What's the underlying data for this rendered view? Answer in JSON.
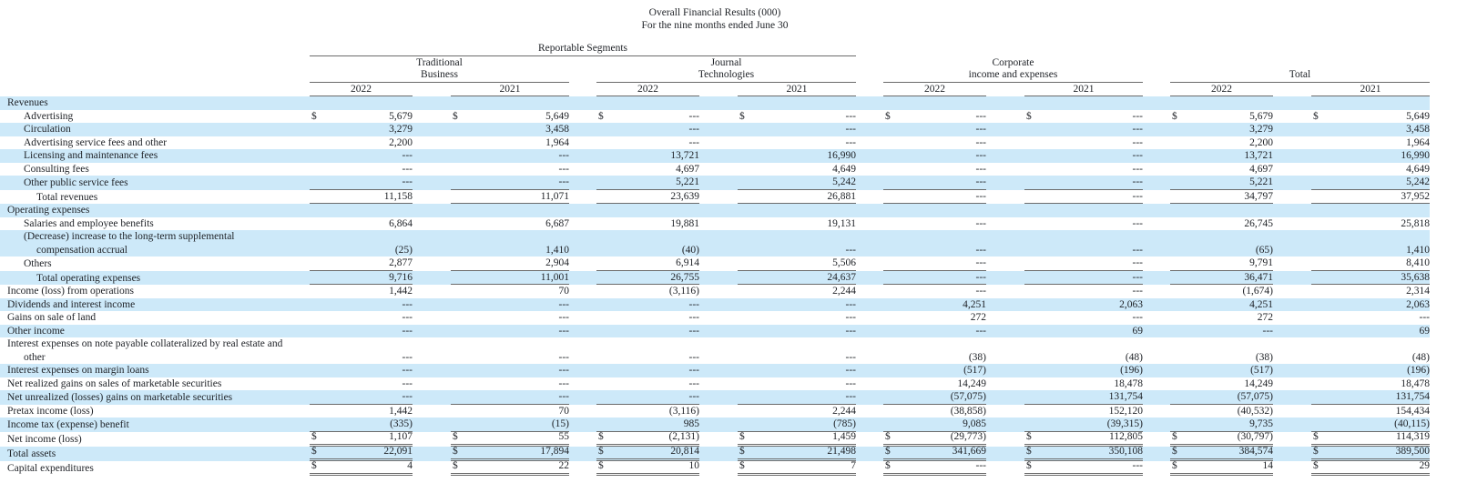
{
  "title": {
    "line1": "Overall Financial Results (000)",
    "line2": "For the nine months ended June 30"
  },
  "header": {
    "segments_label": "Reportable Segments",
    "groups": [
      {
        "line1": "Traditional",
        "line2": "Business"
      },
      {
        "line1": "Journal",
        "line2": "Technologies"
      },
      {
        "line1": "Corporate",
        "line2": "income and expenses"
      },
      {
        "line1": "",
        "line2": "Total"
      }
    ],
    "years": [
      "2022",
      "2021",
      "2022",
      "2021",
      "2022",
      "2021",
      "2022",
      "2021"
    ]
  },
  "colors": {
    "stripe": "#cde9f9",
    "rule": "#6b6b6b",
    "text": "#1e2126"
  },
  "table": {
    "currency": "$",
    "empty_value": "---",
    "rows": [
      {
        "label": "Revenues",
        "indent": 0,
        "shaded": true
      },
      {
        "label": "Advertising",
        "indent": 1,
        "shaded": false,
        "dollar": true,
        "cells": [
          "5,679",
          "5,649",
          "---",
          "---",
          "---",
          "---",
          "5,679",
          "5,649"
        ]
      },
      {
        "label": "Circulation",
        "indent": 1,
        "shaded": true,
        "cells": [
          "3,279",
          "3,458",
          "---",
          "---",
          "---",
          "---",
          "3,279",
          "3,458"
        ]
      },
      {
        "label": "Advertising service fees and other",
        "indent": 1,
        "shaded": false,
        "cells": [
          "2,200",
          "1,964",
          "---",
          "---",
          "---",
          "---",
          "2,200",
          "1,964"
        ]
      },
      {
        "label": "Licensing and maintenance fees",
        "indent": 1,
        "shaded": true,
        "cells": [
          "---",
          "---",
          "13,721",
          "16,990",
          "---",
          "---",
          "13,721",
          "16,990"
        ]
      },
      {
        "label": "Consulting fees",
        "indent": 1,
        "shaded": false,
        "cells": [
          "---",
          "---",
          "4,697",
          "4,649",
          "---",
          "---",
          "4,697",
          "4,649"
        ]
      },
      {
        "label": "Other public service fees",
        "indent": 1,
        "shaded": true,
        "rule": "bottom",
        "cells": [
          "---",
          "---",
          "5,221",
          "5,242",
          "---",
          "---",
          "5,221",
          "5,242"
        ]
      },
      {
        "label": "Total revenues",
        "indent": 2,
        "shaded": false,
        "rule": "bottom",
        "cells": [
          "11,158",
          "11,071",
          "23,639",
          "26,881",
          "---",
          "---",
          "34,797",
          "37,952"
        ]
      },
      {
        "label": "Operating expenses",
        "indent": 0,
        "shaded": true
      },
      {
        "label": "Salaries and employee benefits",
        "indent": 1,
        "shaded": false,
        "cells": [
          "6,864",
          "6,687",
          "19,881",
          "19,131",
          "---",
          "---",
          "26,745",
          "25,818"
        ]
      },
      {
        "label_lines": [
          "(Decrease) increase to the long-term supplemental",
          "compensation accrual"
        ],
        "indents": [
          1,
          2
        ],
        "shaded": true,
        "cells": [
          "(25)",
          "1,410",
          "(40)",
          "---",
          "---",
          "---",
          "(65)",
          "1,410"
        ]
      },
      {
        "label": "Others",
        "indent": 1,
        "shaded": false,
        "rule": "bottom",
        "cells": [
          "2,877",
          "2,904",
          "6,914",
          "5,506",
          "---",
          "---",
          "9,791",
          "8,410"
        ]
      },
      {
        "label": "Total operating expenses",
        "indent": 2,
        "shaded": true,
        "rule": "bottom",
        "cells": [
          "9,716",
          "11,001",
          "26,755",
          "24,637",
          "---",
          "---",
          "36,471",
          "35,638"
        ]
      },
      {
        "label": "Income (loss) from operations",
        "indent": 0,
        "shaded": false,
        "cells": [
          "1,442",
          "70",
          "(3,116)",
          "2,244",
          "---",
          "---",
          "(1,674)",
          "2,314"
        ]
      },
      {
        "label": "Dividends and interest income",
        "indent": 0,
        "shaded": true,
        "cells": [
          "---",
          "---",
          "---",
          "---",
          "4,251",
          "2,063",
          "4,251",
          "2,063"
        ]
      },
      {
        "label": "Gains on sale of land",
        "indent": 0,
        "shaded": false,
        "cells": [
          "---",
          "---",
          "---",
          "---",
          "272",
          "---",
          "272",
          "---"
        ]
      },
      {
        "label": "Other income",
        "indent": 0,
        "shaded": true,
        "cells": [
          "---",
          "---",
          "---",
          "---",
          "---",
          "69",
          "---",
          "69"
        ]
      },
      {
        "label_lines": [
          "Interest expenses on note payable collateralized by real estate and",
          "other"
        ],
        "indents": [
          0,
          1
        ],
        "shaded": false,
        "cells": [
          "---",
          "---",
          "---",
          "---",
          "(38)",
          "(48)",
          "(38)",
          "(48)"
        ]
      },
      {
        "label": "Interest expenses on margin loans",
        "indent": 0,
        "shaded": true,
        "cells": [
          "---",
          "---",
          "---",
          "---",
          "(517)",
          "(196)",
          "(517)",
          "(196)"
        ]
      },
      {
        "label": "Net realized gains on sales of marketable securities",
        "indent": 0,
        "shaded": false,
        "cells": [
          "---",
          "---",
          "---",
          "---",
          "14,249",
          "18,478",
          "14,249",
          "18,478"
        ]
      },
      {
        "label": "Net unrealized (losses) gains on marketable securities",
        "indent": 0,
        "shaded": true,
        "rule": "bottom",
        "cells": [
          "---",
          "---",
          "---",
          "---",
          "(57,075)",
          "131,754",
          "(57,075)",
          "131,754"
        ]
      },
      {
        "label": "Pretax income (loss)",
        "indent": 0,
        "shaded": false,
        "cells": [
          "1,442",
          "70",
          "(3,116)",
          "2,244",
          "(38,858)",
          "152,120",
          "(40,532)",
          "154,434"
        ]
      },
      {
        "label": "Income tax (expense) benefit",
        "indent": 0,
        "shaded": true,
        "rule": "bottom",
        "cells": [
          "(335)",
          "(15)",
          "985",
          "(785)",
          "9,085",
          "(39,315)",
          "9,735",
          "(40,115)"
        ]
      },
      {
        "label": "Net income (loss)",
        "indent": 0,
        "shaded": false,
        "dollar": true,
        "rule": "double",
        "cells": [
          "1,107",
          "55",
          "(2,131)",
          "1,459",
          "(29,773)",
          "112,805",
          "(30,797)",
          "114,319"
        ]
      },
      {
        "label": "Total assets",
        "indent": 0,
        "shaded": true,
        "dollar": true,
        "rule": "double",
        "cells": [
          "22,091",
          "17,894",
          "20,814",
          "21,498",
          "341,669",
          "350,108",
          "384,574",
          "389,500"
        ]
      },
      {
        "label": "Capital expenditures",
        "indent": 0,
        "shaded": false,
        "dollar": true,
        "rule": "double",
        "cells": [
          "4",
          "22",
          "10",
          "7",
          "---",
          "---",
          "14",
          "29"
        ]
      }
    ]
  }
}
